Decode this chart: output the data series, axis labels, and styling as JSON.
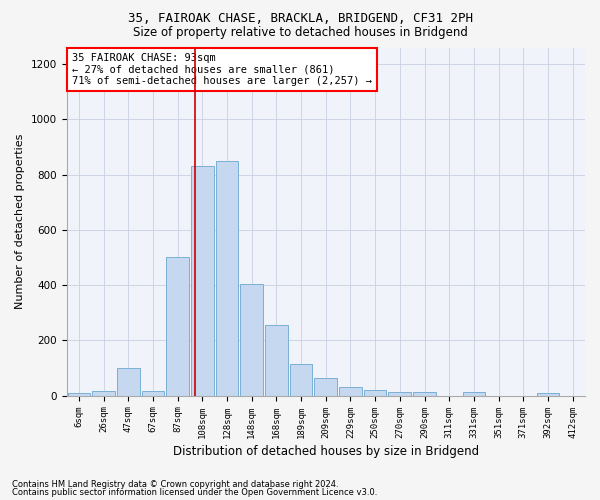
{
  "title_line1": "35, FAIROAK CHASE, BRACKLA, BRIDGEND, CF31 2PH",
  "title_line2": "Size of property relative to detached houses in Bridgend",
  "xlabel": "Distribution of detached houses by size in Bridgend",
  "ylabel": "Number of detached properties",
  "categories": [
    "6sqm",
    "26sqm",
    "47sqm",
    "67sqm",
    "87sqm",
    "108sqm",
    "128sqm",
    "148sqm",
    "168sqm",
    "189sqm",
    "209sqm",
    "229sqm",
    "250sqm",
    "270sqm",
    "290sqm",
    "311sqm",
    "331sqm",
    "351sqm",
    "371sqm",
    "392sqm",
    "412sqm"
  ],
  "values": [
    10,
    15,
    100,
    15,
    500,
    830,
    850,
    405,
    255,
    115,
    65,
    30,
    20,
    13,
    13,
    0,
    13,
    0,
    0,
    10,
    0
  ],
  "bar_color": "#c5d8ef",
  "bar_edge_color": "#7aafd4",
  "vline_x": 4.7,
  "annotation_text": "35 FAIROAK CHASE: 93sqm\n← 27% of detached houses are smaller (861)\n71% of semi-detached houses are larger (2,257) →",
  "annotation_box_color": "white",
  "annotation_box_edge_color": "red",
  "vline_color": "#cc0000",
  "ylim": [
    0,
    1260
  ],
  "yticks": [
    0,
    200,
    400,
    600,
    800,
    1000,
    1200
  ],
  "footer_line1": "Contains HM Land Registry data © Crown copyright and database right 2024.",
  "footer_line2": "Contains public sector information licensed under the Open Government Licence v3.0.",
  "background_color": "#f5f5f5",
  "plot_background_color": "#f0f4fa",
  "grid_color": "#c8cfe0"
}
